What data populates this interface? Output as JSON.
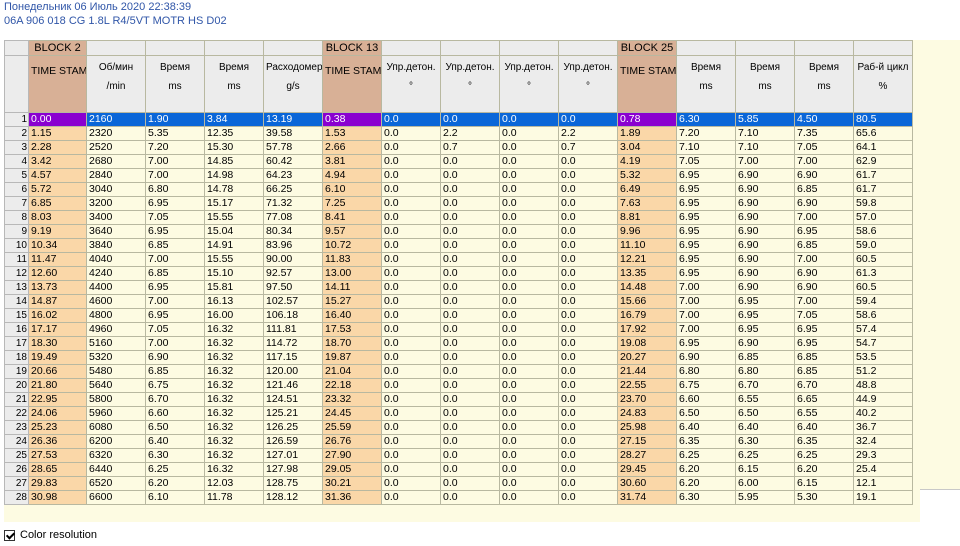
{
  "header": {
    "line1": "Понедельник 06 Июль 2020 22:38:39",
    "line2": "06A 906 018 CG  1.8L R4/5VT MOTR HS D02"
  },
  "grid": {
    "selected_row": 1,
    "blocks": [
      "BLOCK 2",
      "BLOCK 13",
      "BLOCK 25"
    ],
    "columns": [
      {
        "name": "TIME STAMP",
        "unit": ""
      },
      {
        "name": "Об/мин",
        "unit": "/min"
      },
      {
        "name": "Время",
        "unit": "ms"
      },
      {
        "name": "Время",
        "unit": "ms"
      },
      {
        "name": "Расходомер",
        "unit": "g/s"
      },
      {
        "name": "TIME STAMP",
        "unit": ""
      },
      {
        "name": "Упр.детон.",
        "unit": "°"
      },
      {
        "name": "Упр.детон.",
        "unit": "°"
      },
      {
        "name": "Упр.детон.",
        "unit": "°"
      },
      {
        "name": "Упр.детон.",
        "unit": "°"
      },
      {
        "name": "TIME STAMP",
        "unit": ""
      },
      {
        "name": "Время",
        "unit": "ms"
      },
      {
        "name": "Время",
        "unit": "ms"
      },
      {
        "name": "Время",
        "unit": "ms"
      },
      {
        "name": "Раб-й цикл",
        "unit": "%"
      }
    ],
    "rows": [
      [
        "0.00",
        "2160",
        "1.90",
        "3.84",
        "13.19",
        "0.38",
        "0.0",
        "0.0",
        "0.0",
        "0.0",
        "0.78",
        "6.30",
        "5.85",
        "4.50",
        "80.5"
      ],
      [
        "1.15",
        "2320",
        "5.35",
        "12.35",
        "39.58",
        "1.53",
        "0.0",
        "2.2",
        "0.0",
        "2.2",
        "1.89",
        "7.20",
        "7.10",
        "7.35",
        "65.6"
      ],
      [
        "2.28",
        "2520",
        "7.20",
        "15.30",
        "57.78",
        "2.66",
        "0.0",
        "0.7",
        "0.0",
        "0.7",
        "3.04",
        "7.10",
        "7.10",
        "7.05",
        "64.1"
      ],
      [
        "3.42",
        "2680",
        "7.00",
        "14.85",
        "60.42",
        "3.81",
        "0.0",
        "0.0",
        "0.0",
        "0.0",
        "4.19",
        "7.05",
        "7.00",
        "7.00",
        "62.9"
      ],
      [
        "4.57",
        "2840",
        "7.00",
        "14.98",
        "64.23",
        "4.94",
        "0.0",
        "0.0",
        "0.0",
        "0.0",
        "5.32",
        "6.95",
        "6.90",
        "6.90",
        "61.7"
      ],
      [
        "5.72",
        "3040",
        "6.80",
        "14.78",
        "66.25",
        "6.10",
        "0.0",
        "0.0",
        "0.0",
        "0.0",
        "6.49",
        "6.95",
        "6.90",
        "6.85",
        "61.7"
      ],
      [
        "6.85",
        "3200",
        "6.95",
        "15.17",
        "71.32",
        "7.25",
        "0.0",
        "0.0",
        "0.0",
        "0.0",
        "7.63",
        "6.95",
        "6.90",
        "6.90",
        "59.8"
      ],
      [
        "8.03",
        "3400",
        "7.05",
        "15.55",
        "77.08",
        "8.41",
        "0.0",
        "0.0",
        "0.0",
        "0.0",
        "8.81",
        "6.95",
        "6.90",
        "7.00",
        "57.0"
      ],
      [
        "9.19",
        "3640",
        "6.95",
        "15.04",
        "80.34",
        "9.57",
        "0.0",
        "0.0",
        "0.0",
        "0.0",
        "9.96",
        "6.95",
        "6.90",
        "6.95",
        "58.6"
      ],
      [
        "10.34",
        "3840",
        "6.85",
        "14.91",
        "83.96",
        "10.72",
        "0.0",
        "0.0",
        "0.0",
        "0.0",
        "11.10",
        "6.95",
        "6.90",
        "6.85",
        "59.0"
      ],
      [
        "11.47",
        "4040",
        "7.00",
        "15.55",
        "90.00",
        "11.83",
        "0.0",
        "0.0",
        "0.0",
        "0.0",
        "12.21",
        "6.95",
        "6.90",
        "7.00",
        "60.5"
      ],
      [
        "12.60",
        "4240",
        "6.85",
        "15.10",
        "92.57",
        "13.00",
        "0.0",
        "0.0",
        "0.0",
        "0.0",
        "13.35",
        "6.95",
        "6.90",
        "6.90",
        "61.3"
      ],
      [
        "13.73",
        "4400",
        "6.95",
        "15.81",
        "97.50",
        "14.11",
        "0.0",
        "0.0",
        "0.0",
        "0.0",
        "14.48",
        "7.00",
        "6.90",
        "6.90",
        "60.5"
      ],
      [
        "14.87",
        "4600",
        "7.00",
        "16.13",
        "102.57",
        "15.27",
        "0.0",
        "0.0",
        "0.0",
        "0.0",
        "15.66",
        "7.00",
        "6.95",
        "7.00",
        "59.4"
      ],
      [
        "16.02",
        "4800",
        "6.95",
        "16.00",
        "106.18",
        "16.40",
        "0.0",
        "0.0",
        "0.0",
        "0.0",
        "16.79",
        "7.00",
        "6.95",
        "7.05",
        "58.6"
      ],
      [
        "17.17",
        "4960",
        "7.05",
        "16.32",
        "111.81",
        "17.53",
        "0.0",
        "0.0",
        "0.0",
        "0.0",
        "17.92",
        "7.00",
        "6.95",
        "6.95",
        "57.4"
      ],
      [
        "18.30",
        "5160",
        "7.00",
        "16.32",
        "114.72",
        "18.70",
        "0.0",
        "0.0",
        "0.0",
        "0.0",
        "19.08",
        "6.95",
        "6.90",
        "6.95",
        "54.7"
      ],
      [
        "19.49",
        "5320",
        "6.90",
        "16.32",
        "117.15",
        "19.87",
        "0.0",
        "0.0",
        "0.0",
        "0.0",
        "20.27",
        "6.90",
        "6.85",
        "6.85",
        "53.5"
      ],
      [
        "20.66",
        "5480",
        "6.85",
        "16.32",
        "120.00",
        "21.04",
        "0.0",
        "0.0",
        "0.0",
        "0.0",
        "21.44",
        "6.80",
        "6.80",
        "6.85",
        "51.2"
      ],
      [
        "21.80",
        "5640",
        "6.75",
        "16.32",
        "121.46",
        "22.18",
        "0.0",
        "0.0",
        "0.0",
        "0.0",
        "22.55",
        "6.75",
        "6.70",
        "6.70",
        "48.8"
      ],
      [
        "22.95",
        "5800",
        "6.70",
        "16.32",
        "124.51",
        "23.32",
        "0.0",
        "0.0",
        "0.0",
        "0.0",
        "23.70",
        "6.60",
        "6.55",
        "6.65",
        "44.9"
      ],
      [
        "24.06",
        "5960",
        "6.60",
        "16.32",
        "125.21",
        "24.45",
        "0.0",
        "0.0",
        "0.0",
        "0.0",
        "24.83",
        "6.50",
        "6.50",
        "6.55",
        "40.2"
      ],
      [
        "25.23",
        "6080",
        "6.50",
        "16.32",
        "126.25",
        "25.59",
        "0.0",
        "0.0",
        "0.0",
        "0.0",
        "25.98",
        "6.40",
        "6.40",
        "6.40",
        "36.7"
      ],
      [
        "26.36",
        "6200",
        "6.40",
        "16.32",
        "126.59",
        "26.76",
        "0.0",
        "0.0",
        "0.0",
        "0.0",
        "27.15",
        "6.35",
        "6.30",
        "6.35",
        "32.4"
      ],
      [
        "27.53",
        "6320",
        "6.30",
        "16.32",
        "127.01",
        "27.90",
        "0.0",
        "0.0",
        "0.0",
        "0.0",
        "28.27",
        "6.25",
        "6.25",
        "6.25",
        "29.3"
      ],
      [
        "28.65",
        "6440",
        "6.25",
        "16.32",
        "127.98",
        "29.05",
        "0.0",
        "0.0",
        "0.0",
        "0.0",
        "29.45",
        "6.20",
        "6.15",
        "6.20",
        "25.4"
      ],
      [
        "29.83",
        "6520",
        "6.20",
        "12.03",
        "128.75",
        "30.21",
        "0.0",
        "0.0",
        "0.0",
        "0.0",
        "30.60",
        "6.20",
        "6.00",
        "6.15",
        "12.1"
      ],
      [
        "30.98",
        "6600",
        "6.10",
        "11.78",
        "128.12",
        "31.36",
        "0.0",
        "0.0",
        "0.0",
        "0.0",
        "31.74",
        "6.30",
        "5.95",
        "5.30",
        "19.1"
      ]
    ]
  },
  "footer": {
    "checkbox_label": "Color resolution",
    "checkbox_checked": true
  }
}
